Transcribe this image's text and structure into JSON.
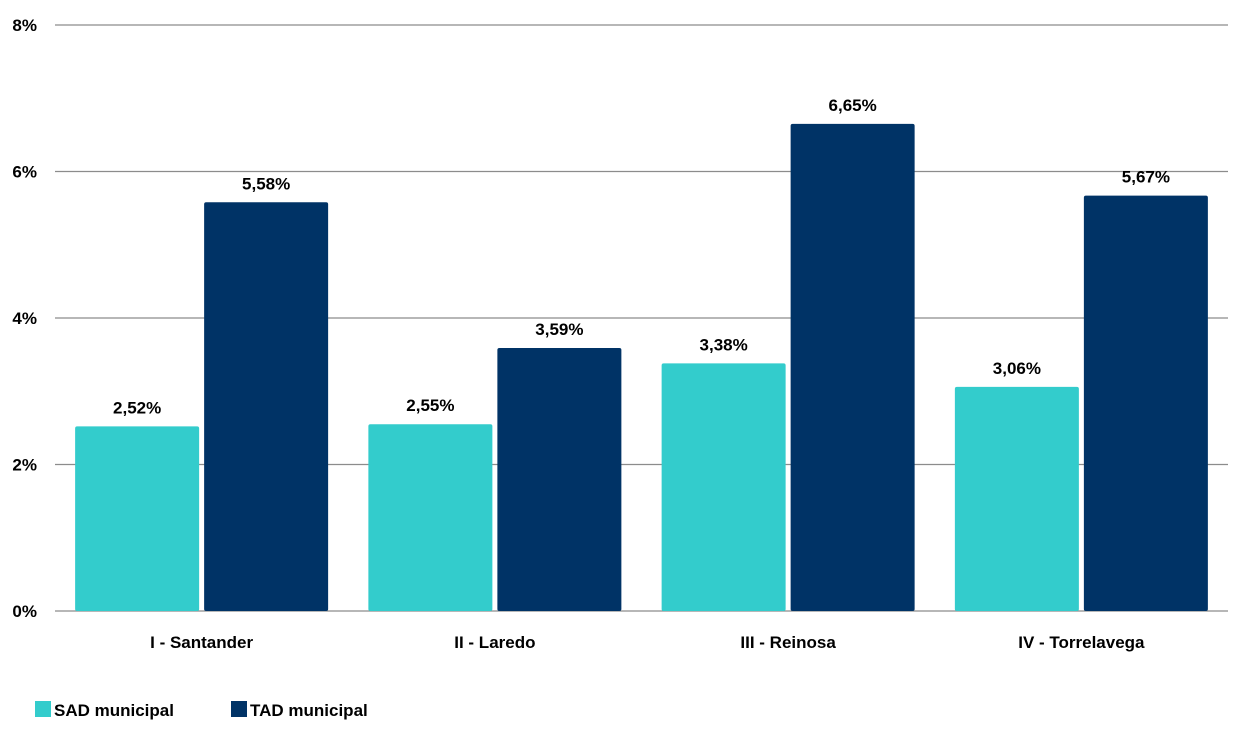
{
  "chart_data": {
    "type": "bar",
    "categories": [
      "I - Santander",
      "II - Laredo",
      "III - Reinosa",
      "IV - Torrelavega"
    ],
    "series": [
      {
        "name": "SAD municipal",
        "color": "#33CCCC",
        "values": [
          2.52,
          2.55,
          3.38,
          3.06
        ],
        "labels": [
          "2,52%",
          "2,55%",
          "3,38%",
          "3,06%"
        ]
      },
      {
        "name": "TAD municipal",
        "color": "#003366",
        "values": [
          5.58,
          3.59,
          6.65,
          5.67
        ],
        "labels": [
          "5,58%",
          "3,59%",
          "6,65%",
          "5,67%"
        ]
      }
    ],
    "ylim": [
      0,
      8
    ],
    "yticks": [
      0,
      2,
      4,
      6,
      8
    ],
    "ytick_labels": [
      "0%",
      "2%",
      "4%",
      "6%",
      "8%"
    ],
    "grid": true,
    "legend_position": "bottom-left",
    "title": "",
    "xlabel": "",
    "ylabel": ""
  }
}
